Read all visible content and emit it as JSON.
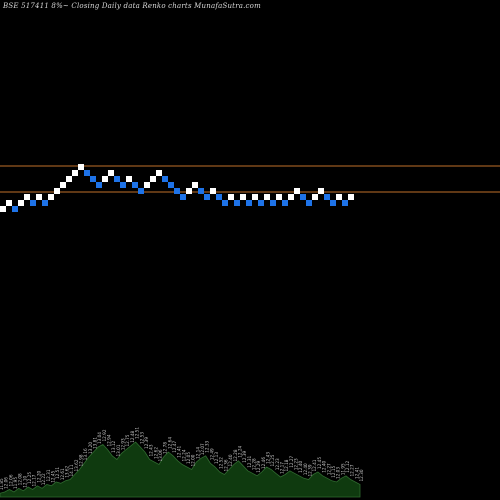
{
  "header": {
    "title": "BSE 517411 8%~  Closing Daily data  Renko  charts MunafaSutra.com"
  },
  "colors": {
    "background": "#000000",
    "up_brick": "#ffffff",
    "down_brick": "#1e73e8",
    "reference_line": "#c0702a",
    "volume_fill": "#0f3a0f",
    "volume_stroke": "#2f6a2f",
    "label": "#c8c8c8"
  },
  "chart_data": {
    "type": "renko",
    "title": "BSE 517411 8%~ Closing Daily data Renko charts MunafaSutra.com",
    "reference_levels": [
      11.95,
      11.55
    ],
    "bricks": [
      {
        "dir": "up",
        "level": 0
      },
      {
        "dir": "up",
        "level": 1
      },
      {
        "dir": "down",
        "level": 0
      },
      {
        "dir": "up",
        "level": 1
      },
      {
        "dir": "up",
        "level": 2
      },
      {
        "dir": "down",
        "level": 1
      },
      {
        "dir": "up",
        "level": 2
      },
      {
        "dir": "down",
        "level": 1
      },
      {
        "dir": "up",
        "level": 2
      },
      {
        "dir": "up",
        "level": 3
      },
      {
        "dir": "up",
        "level": 4
      },
      {
        "dir": "up",
        "level": 5
      },
      {
        "dir": "up",
        "level": 6
      },
      {
        "dir": "up",
        "level": 7
      },
      {
        "dir": "down",
        "level": 6
      },
      {
        "dir": "down",
        "level": 5
      },
      {
        "dir": "down",
        "level": 4
      },
      {
        "dir": "up",
        "level": 5
      },
      {
        "dir": "up",
        "level": 6
      },
      {
        "dir": "down",
        "level": 5
      },
      {
        "dir": "down",
        "level": 4
      },
      {
        "dir": "up",
        "level": 5
      },
      {
        "dir": "down",
        "level": 4
      },
      {
        "dir": "down",
        "level": 3
      },
      {
        "dir": "up",
        "level": 4
      },
      {
        "dir": "up",
        "level": 5
      },
      {
        "dir": "up",
        "level": 6
      },
      {
        "dir": "down",
        "level": 5
      },
      {
        "dir": "down",
        "level": 4
      },
      {
        "dir": "down",
        "level": 3
      },
      {
        "dir": "down",
        "level": 2
      },
      {
        "dir": "up",
        "level": 3
      },
      {
        "dir": "up",
        "level": 4
      },
      {
        "dir": "down",
        "level": 3
      },
      {
        "dir": "down",
        "level": 2
      },
      {
        "dir": "up",
        "level": 3
      },
      {
        "dir": "down",
        "level": 2
      },
      {
        "dir": "down",
        "level": 1
      },
      {
        "dir": "up",
        "level": 2
      },
      {
        "dir": "down",
        "level": 1
      },
      {
        "dir": "up",
        "level": 2
      },
      {
        "dir": "down",
        "level": 1
      },
      {
        "dir": "up",
        "level": 2
      },
      {
        "dir": "down",
        "level": 1
      },
      {
        "dir": "up",
        "level": 2
      },
      {
        "dir": "down",
        "level": 1
      },
      {
        "dir": "up",
        "level": 2
      },
      {
        "dir": "down",
        "level": 1
      },
      {
        "dir": "up",
        "level": 2
      },
      {
        "dir": "up",
        "level": 3
      },
      {
        "dir": "down",
        "level": 2
      },
      {
        "dir": "down",
        "level": 1
      },
      {
        "dir": "up",
        "level": 2
      },
      {
        "dir": "up",
        "level": 3
      },
      {
        "dir": "down",
        "level": 2
      },
      {
        "dir": "down",
        "level": 1
      },
      {
        "dir": "up",
        "level": 2
      },
      {
        "dir": "down",
        "level": 1
      },
      {
        "dir": "up",
        "level": 2
      }
    ],
    "volume_labels": [
      "11.85",
      "12.06",
      "12.06",
      "11.95",
      "12.08",
      "12.10",
      "12.25",
      "12.17",
      "12.20",
      "12.22",
      "12.31",
      "12.45",
      "12.51",
      "12.61",
      "13.62",
      "14.11",
      "13.62",
      "12.98",
      "13.16",
      "13.20",
      "13.81",
      "13.04",
      "12.92",
      "12.94",
      "13.12",
      "13.01",
      "12.93",
      "12.75",
      "12.48",
      "12.51",
      "12.53",
      "12.39",
      "12.43",
      "12.62",
      "13.06",
      "12.78",
      "12.64",
      "12.47",
      "12.41",
      "12.24",
      "12.05",
      "12.00",
      "12.14",
      "12.07",
      "12.33",
      "12.49",
      "12.13",
      "12.52",
      "12.36",
      "12.40",
      "12.28",
      "12.24",
      "12.39",
      "12.31",
      "12.28",
      "12.29",
      "12.46",
      "12.43",
      "12.25",
      "12.23",
      "12.17",
      "12.18",
      "12.27",
      "12.23",
      "12.40",
      "12.40",
      "12.39",
      "12.41",
      "12.45",
      "12.40",
      "12.27",
      "12.15",
      "12.03",
      "11.95",
      "12.12",
      "12.27",
      "12.41",
      "12.30"
    ],
    "volume_values": [
      3,
      4,
      6,
      4,
      7,
      5,
      8,
      6,
      9,
      7,
      10,
      9,
      12,
      11,
      13,
      14,
      18,
      22,
      27,
      32,
      36,
      40,
      42,
      38,
      33,
      30,
      35,
      38,
      41,
      44,
      40,
      36,
      30,
      28,
      26,
      32,
      36,
      33,
      29,
      26,
      24,
      22,
      28,
      31,
      33,
      27,
      24,
      20,
      18,
      22,
      26,
      29,
      25,
      21,
      19,
      17,
      20,
      24,
      22,
      19,
      16,
      18,
      21,
      19,
      17,
      15,
      14,
      18,
      20,
      17,
      15,
      13,
      12,
      15,
      17,
      14,
      12,
      10
    ]
  }
}
